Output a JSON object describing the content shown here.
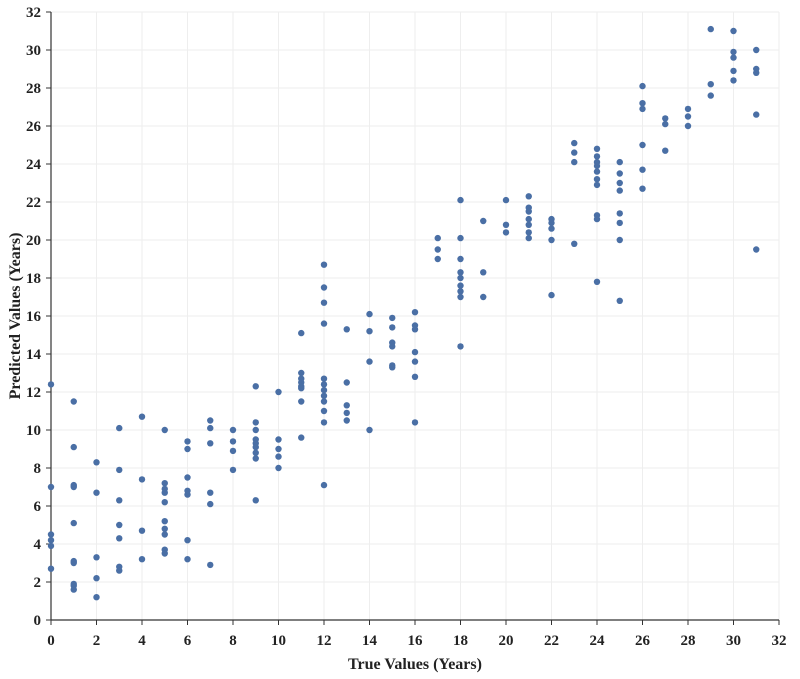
{
  "chart_data": {
    "type": "scatter",
    "title": "",
    "xlabel": "True Values (Years)",
    "ylabel": "Predicted Values (Years)",
    "xlim": [
      0,
      32
    ],
    "ylim": [
      0,
      32
    ],
    "x_ticks": [
      0,
      2,
      4,
      6,
      8,
      10,
      12,
      14,
      16,
      18,
      20,
      22,
      24,
      26,
      28,
      30,
      32
    ],
    "y_ticks": [
      0,
      2,
      4,
      6,
      8,
      10,
      12,
      14,
      16,
      18,
      20,
      22,
      24,
      26,
      28,
      30,
      32
    ],
    "grid": true,
    "marker_color": "#4a6fa5",
    "axis_color": "#333333",
    "grid_color": "#eeeeee",
    "series": [
      {
        "points": [
          [
            0,
            12.4
          ],
          [
            0,
            7.0
          ],
          [
            0,
            4.5
          ],
          [
            0,
            4.2
          ],
          [
            0,
            3.9
          ],
          [
            0,
            2.7
          ],
          [
            1,
            11.5
          ],
          [
            1,
            9.1
          ],
          [
            1,
            7.1
          ],
          [
            1,
            7.0
          ],
          [
            1,
            5.1
          ],
          [
            1,
            3.1
          ],
          [
            1,
            3.0
          ],
          [
            1,
            1.9
          ],
          [
            1,
            1.8
          ],
          [
            1,
            1.6
          ],
          [
            2,
            8.3
          ],
          [
            2,
            6.7
          ],
          [
            2,
            3.3
          ],
          [
            2,
            2.2
          ],
          [
            2,
            1.2
          ],
          [
            3,
            10.1
          ],
          [
            3,
            7.9
          ],
          [
            3,
            6.3
          ],
          [
            3,
            5.0
          ],
          [
            3,
            4.3
          ],
          [
            3,
            2.8
          ],
          [
            3,
            2.6
          ],
          [
            4,
            10.7
          ],
          [
            4,
            7.4
          ],
          [
            4,
            4.7
          ],
          [
            4,
            3.2
          ],
          [
            5,
            10.0
          ],
          [
            5,
            7.2
          ],
          [
            5,
            6.9
          ],
          [
            5,
            6.7
          ],
          [
            5,
            6.2
          ],
          [
            5,
            5.2
          ],
          [
            5,
            4.8
          ],
          [
            5,
            4.5
          ],
          [
            5,
            3.7
          ],
          [
            5,
            3.5
          ],
          [
            6,
            9.4
          ],
          [
            6,
            9.0
          ],
          [
            6,
            7.5
          ],
          [
            6,
            6.8
          ],
          [
            6,
            6.6
          ],
          [
            6,
            4.2
          ],
          [
            6,
            3.2
          ],
          [
            7,
            10.5
          ],
          [
            7,
            10.1
          ],
          [
            7,
            9.3
          ],
          [
            7,
            6.7
          ],
          [
            7,
            6.1
          ],
          [
            7,
            2.9
          ],
          [
            8,
            10.0
          ],
          [
            8,
            9.4
          ],
          [
            8,
            8.9
          ],
          [
            8,
            7.9
          ],
          [
            9,
            12.3
          ],
          [
            9,
            10.4
          ],
          [
            9,
            10.0
          ],
          [
            9,
            9.5
          ],
          [
            9,
            9.3
          ],
          [
            9,
            9.1
          ],
          [
            9,
            8.8
          ],
          [
            9,
            8.5
          ],
          [
            9,
            6.3
          ],
          [
            10,
            12.0
          ],
          [
            10,
            9.5
          ],
          [
            10,
            9.0
          ],
          [
            10,
            8.6
          ],
          [
            10,
            8.0
          ],
          [
            11,
            15.1
          ],
          [
            11,
            13.0
          ],
          [
            11,
            12.7
          ],
          [
            11,
            12.5
          ],
          [
            11,
            12.3
          ],
          [
            11,
            12.2
          ],
          [
            11,
            11.5
          ],
          [
            11,
            9.6
          ],
          [
            12,
            18.7
          ],
          [
            12,
            17.5
          ],
          [
            12,
            16.7
          ],
          [
            12,
            15.6
          ],
          [
            12,
            12.7
          ],
          [
            12,
            12.4
          ],
          [
            12,
            12.1
          ],
          [
            12,
            11.8
          ],
          [
            12,
            11.5
          ],
          [
            12,
            11.0
          ],
          [
            12,
            10.4
          ],
          [
            12,
            7.1
          ],
          [
            13,
            15.3
          ],
          [
            13,
            12.5
          ],
          [
            13,
            11.3
          ],
          [
            13,
            10.9
          ],
          [
            13,
            10.5
          ],
          [
            14,
            16.1
          ],
          [
            14,
            15.2
          ],
          [
            14,
            13.6
          ],
          [
            14,
            10.0
          ],
          [
            15,
            15.9
          ],
          [
            15,
            15.4
          ],
          [
            15,
            14.6
          ],
          [
            15,
            14.4
          ],
          [
            15,
            13.4
          ],
          [
            15,
            13.3
          ],
          [
            16,
            16.2
          ],
          [
            16,
            15.5
          ],
          [
            16,
            15.3
          ],
          [
            16,
            14.1
          ],
          [
            16,
            13.6
          ],
          [
            16,
            12.8
          ],
          [
            16,
            10.4
          ],
          [
            17,
            20.1
          ],
          [
            17,
            19.5
          ],
          [
            17,
            19.0
          ],
          [
            18,
            22.1
          ],
          [
            18,
            20.1
          ],
          [
            18,
            19.0
          ],
          [
            18,
            18.3
          ],
          [
            18,
            18.0
          ],
          [
            18,
            17.6
          ],
          [
            18,
            17.3
          ],
          [
            18,
            17.0
          ],
          [
            18,
            14.4
          ],
          [
            19,
            21.0
          ],
          [
            19,
            18.3
          ],
          [
            19,
            17.0
          ],
          [
            20,
            22.1
          ],
          [
            20,
            20.8
          ],
          [
            20,
            20.4
          ],
          [
            21,
            22.3
          ],
          [
            21,
            21.7
          ],
          [
            21,
            21.5
          ],
          [
            21,
            21.1
          ],
          [
            21,
            20.8
          ],
          [
            21,
            20.4
          ],
          [
            21,
            20.1
          ],
          [
            22,
            21.1
          ],
          [
            22,
            20.9
          ],
          [
            22,
            20.6
          ],
          [
            22,
            20.0
          ],
          [
            22,
            17.1
          ],
          [
            23,
            25.1
          ],
          [
            23,
            24.6
          ],
          [
            23,
            24.1
          ],
          [
            23,
            19.8
          ],
          [
            24,
            24.8
          ],
          [
            24,
            24.4
          ],
          [
            24,
            24.1
          ],
          [
            24,
            23.9
          ],
          [
            24,
            23.6
          ],
          [
            24,
            23.2
          ],
          [
            24,
            22.9
          ],
          [
            24,
            21.3
          ],
          [
            24,
            21.1
          ],
          [
            24,
            17.8
          ],
          [
            25,
            24.1
          ],
          [
            25,
            23.5
          ],
          [
            25,
            23.0
          ],
          [
            25,
            22.6
          ],
          [
            25,
            21.4
          ],
          [
            25,
            20.9
          ],
          [
            25,
            20.0
          ],
          [
            25,
            16.8
          ],
          [
            26,
            28.1
          ],
          [
            26,
            27.2
          ],
          [
            26,
            26.9
          ],
          [
            26,
            25.0
          ],
          [
            26,
            23.7
          ],
          [
            26,
            22.7
          ],
          [
            27,
            26.4
          ],
          [
            27,
            26.1
          ],
          [
            27,
            24.7
          ],
          [
            28,
            26.9
          ],
          [
            28,
            26.5
          ],
          [
            28,
            26.0
          ],
          [
            29,
            31.1
          ],
          [
            29,
            28.2
          ],
          [
            29,
            27.6
          ],
          [
            30,
            31.0
          ],
          [
            30,
            29.9
          ],
          [
            30,
            29.6
          ],
          [
            30,
            28.9
          ],
          [
            30,
            28.4
          ],
          [
            31,
            30.0
          ],
          [
            31,
            29.0
          ],
          [
            31,
            28.8
          ],
          [
            31,
            26.6
          ],
          [
            31,
            19.5
          ]
        ]
      }
    ]
  }
}
